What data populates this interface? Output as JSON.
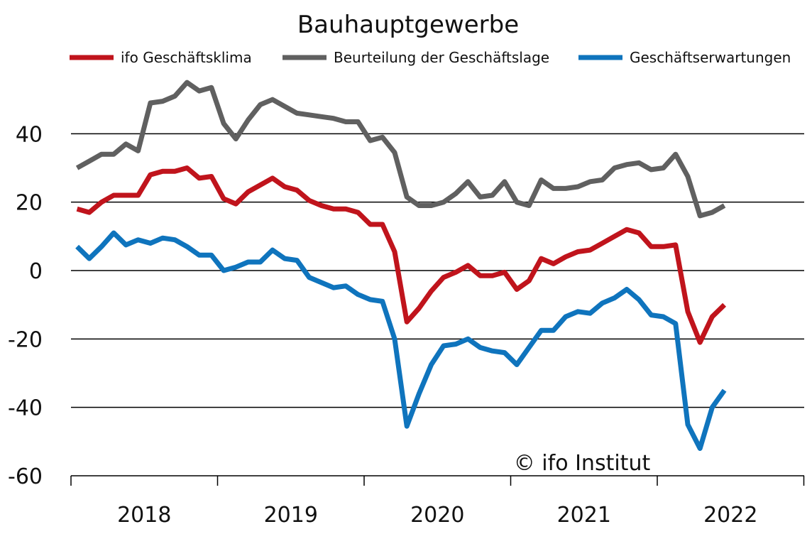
{
  "chart_data": {
    "type": "line",
    "title": "Bauhauptgewerbe",
    "xlabel": "",
    "ylabel": "",
    "ylim": [
      -60,
      60
    ],
    "yticks": [
      40,
      20,
      0,
      -20,
      -40,
      -60
    ],
    "grid": true,
    "legend_position": "top",
    "x_year_labels": [
      "2018",
      "2019",
      "2020",
      "2021",
      "2022"
    ],
    "x": [
      "2018-01",
      "2018-02",
      "2018-03",
      "2018-04",
      "2018-05",
      "2018-06",
      "2018-07",
      "2018-08",
      "2018-09",
      "2018-10",
      "2018-11",
      "2018-12",
      "2019-01",
      "2019-02",
      "2019-03",
      "2019-04",
      "2019-05",
      "2019-06",
      "2019-07",
      "2019-08",
      "2019-09",
      "2019-10",
      "2019-11",
      "2019-12",
      "2020-01",
      "2020-02",
      "2020-03",
      "2020-04",
      "2020-05",
      "2020-06",
      "2020-07",
      "2020-08",
      "2020-09",
      "2020-10",
      "2020-11",
      "2020-12",
      "2021-01",
      "2021-02",
      "2021-03",
      "2021-04",
      "2021-05",
      "2021-06",
      "2021-07",
      "2021-08",
      "2021-09",
      "2021-10",
      "2021-11",
      "2021-12",
      "2022-01",
      "2022-02",
      "2022-03",
      "2022-04",
      "2022-05",
      "2022-06",
      "2022-07"
    ],
    "series": [
      {
        "name": "ifo Geschäftsklima",
        "color": "#c0141c",
        "values": [
          18,
          17,
          20,
          22,
          22,
          22,
          28,
          29,
          29,
          30,
          27,
          27.5,
          21,
          19.5,
          23,
          25,
          27,
          24.5,
          23.5,
          20.5,
          19,
          18,
          18,
          17,
          13.5,
          13.5,
          5.5,
          -15,
          -11,
          -6,
          -2,
          -0.5,
          1.5,
          -1.5,
          -1.5,
          -0.5,
          -5.5,
          -3,
          3.5,
          2,
          4,
          5.5,
          6,
          8,
          10,
          12,
          11,
          7,
          7,
          7.5,
          -12,
          -21,
          -13.5,
          -10,
          null
        ]
      },
      {
        "name": "Beurteilung der Geschäftslage",
        "color": "#606060",
        "values": [
          30,
          32,
          34,
          34,
          37,
          35,
          49,
          49.5,
          51,
          55,
          52.5,
          53.5,
          43,
          38.5,
          44,
          48.5,
          50,
          48,
          46,
          45.5,
          45,
          44.5,
          43.5,
          43.5,
          38,
          39,
          34.5,
          21.5,
          19,
          19,
          20,
          22.5,
          26,
          21.5,
          22,
          26,
          20,
          19,
          26.5,
          24,
          24,
          24.5,
          26,
          26.5,
          30,
          31,
          31.5,
          29.5,
          30,
          34,
          27.5,
          16,
          17,
          19,
          null
        ]
      },
      {
        "name": "Geschäftserwartungen",
        "color": "#0f74bd",
        "values": [
          7,
          3.5,
          7,
          11,
          7.5,
          9,
          8,
          9.5,
          9,
          7,
          4.5,
          4.5,
          0,
          1,
          2.5,
          2.5,
          6,
          3.5,
          3,
          -2,
          -3.5,
          -5,
          -4.5,
          -7,
          -8.5,
          -9,
          -20,
          -45.5,
          -36,
          -27.5,
          -22,
          -21.5,
          -20,
          -22.5,
          -23.5,
          -24,
          -27.5,
          -22.5,
          -17.5,
          -17.5,
          -13.5,
          -12,
          -12.5,
          -9.5,
          -8,
          -5.5,
          -8.5,
          -13,
          -13.5,
          -15.5,
          -45,
          -52,
          -40,
          -35,
          null
        ]
      }
    ]
  },
  "copyright": "© ifo Institut"
}
